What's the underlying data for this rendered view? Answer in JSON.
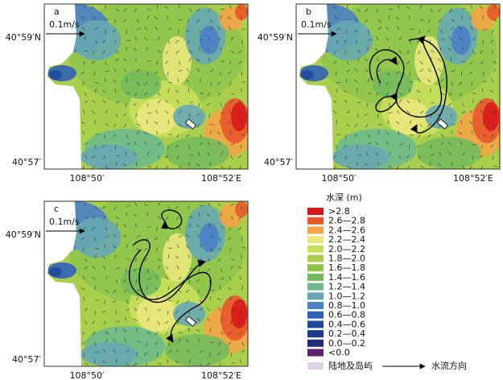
{
  "panels": [
    {
      "label": "a",
      "scale": "0.1m/s",
      "y_ticks": [
        "40°59′N",
        "40°57′"
      ],
      "x_ticks": [
        "108°50′",
        "108°52′E"
      ]
    },
    {
      "label": "b",
      "scale": "0.1m/s",
      "y_ticks": [
        "40°59′N",
        "40°57′"
      ],
      "x_ticks": [
        "108°50′",
        "108°52′E"
      ]
    },
    {
      "label": "c",
      "scale": "0.1m/s",
      "y_ticks": [
        "40°59′N",
        "40°57′"
      ],
      "x_ticks": [
        "108°50′",
        "108°52′E"
      ]
    }
  ],
  "legend": {
    "title": "水深 (m)",
    "items": [
      {
        "label": ">2.8",
        "color": "#d7191c"
      },
      {
        "label": "2.6—2.8",
        "color": "#e9572b"
      },
      {
        "label": "2.4—2.6",
        "color": "#f3a446"
      },
      {
        "label": "2.2—2.4",
        "color": "#eae77c"
      },
      {
        "label": "2.0—2.2",
        "color": "#c9df5c"
      },
      {
        "label": "1.8—2.0",
        "color": "#a9d04c"
      },
      {
        "label": "1.6—1.8",
        "color": "#8fc44c"
      },
      {
        "label": "1.4—1.6",
        "color": "#74ba5c"
      },
      {
        "label": "1.2—1.4",
        "color": "#6db98c"
      },
      {
        "label": "1.0—1.2",
        "color": "#67a7b2"
      },
      {
        "label": "0.8—1.0",
        "color": "#4a80c8"
      },
      {
        "label": "0.6—0.8",
        "color": "#3061b8"
      },
      {
        "label": "0.4—0.6",
        "color": "#2249a2"
      },
      {
        "label": "0.2—0.4",
        "color": "#1c3a90"
      },
      {
        "label": "0.0—0.2",
        "color": "#232a7a"
      },
      {
        "label": "<0.0",
        "color": "#5b2172"
      }
    ],
    "land": {
      "label": "陆地及岛屿",
      "color": "#dcd4e2"
    },
    "flow": "水流方向"
  }
}
